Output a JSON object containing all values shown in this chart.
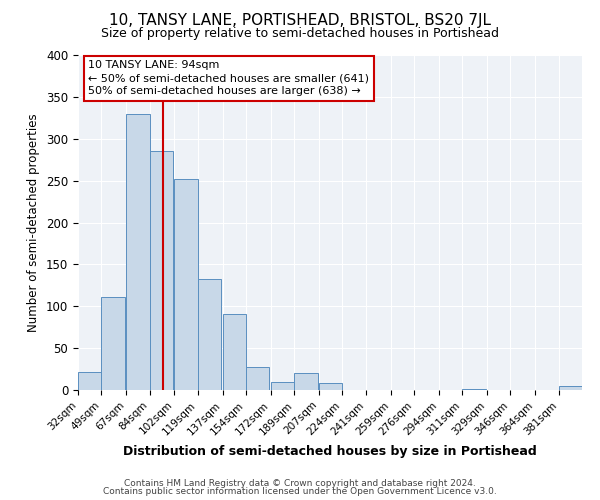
{
  "title": "10, TANSY LANE, PORTISHEAD, BRISTOL, BS20 7JL",
  "subtitle": "Size of property relative to semi-detached houses in Portishead",
  "xlabel": "Distribution of semi-detached houses by size in Portishead",
  "ylabel": "Number of semi-detached properties",
  "bin_labels": [
    "32sqm",
    "49sqm",
    "67sqm",
    "84sqm",
    "102sqm",
    "119sqm",
    "137sqm",
    "154sqm",
    "172sqm",
    "189sqm",
    "207sqm",
    "224sqm",
    "241sqm",
    "259sqm",
    "276sqm",
    "294sqm",
    "311sqm",
    "329sqm",
    "346sqm",
    "364sqm",
    "381sqm"
  ],
  "bar_values": [
    22,
    111,
    330,
    285,
    252,
    132,
    91,
    27,
    10,
    20,
    8,
    0,
    0,
    0,
    0,
    0,
    1,
    0,
    0,
    0,
    5
  ],
  "bar_color": "#c8d8e8",
  "bar_edge_color": "#5a8fc0",
  "vline_x": 94,
  "vline_color": "#cc0000",
  "annotation_title": "10 TANSY LANE: 94sqm",
  "annotation_line1": "← 50% of semi-detached houses are smaller (641)",
  "annotation_line2": "50% of semi-detached houses are larger (638) →",
  "annotation_box_color": "#cc0000",
  "ylim": [
    0,
    400
  ],
  "yticks": [
    0,
    50,
    100,
    150,
    200,
    250,
    300,
    350,
    400
  ],
  "footer_line1": "Contains HM Land Registry data © Crown copyright and database right 2024.",
  "footer_line2": "Contains public sector information licensed under the Open Government Licence v3.0.",
  "bin_starts": [
    32,
    49,
    67,
    84,
    102,
    119,
    137,
    154,
    172,
    189,
    207,
    224,
    241,
    259,
    276,
    294,
    311,
    329,
    346,
    364,
    381
  ],
  "bin_width": 17,
  "bg_color": "#eef2f7"
}
